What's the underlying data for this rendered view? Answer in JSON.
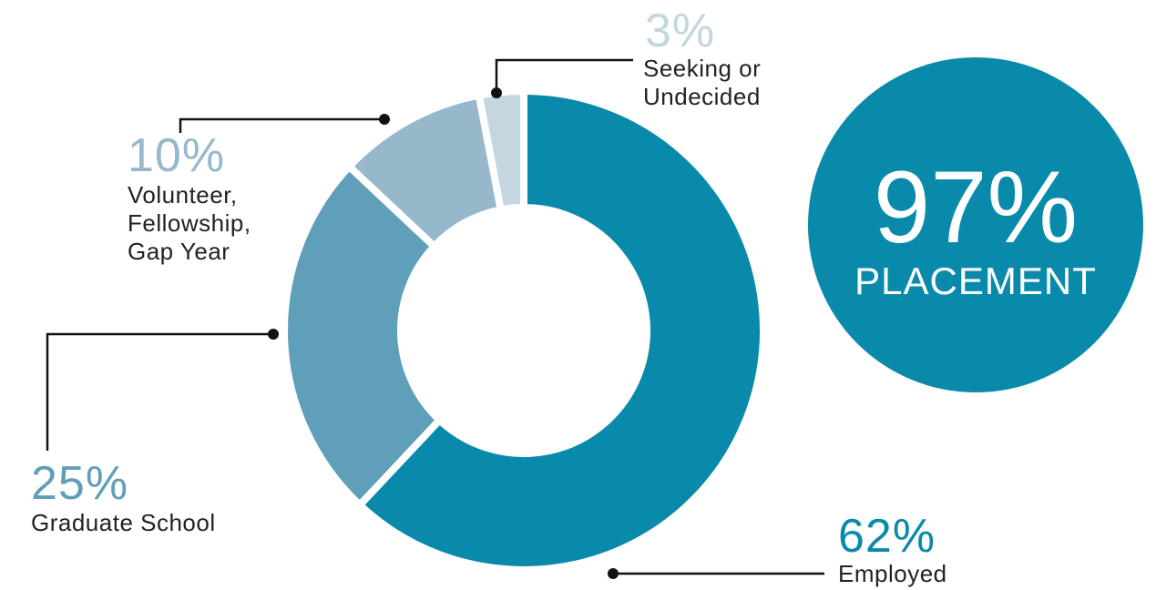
{
  "chart_data": {
    "type": "donut",
    "categories": [
      "Employed",
      "Graduate School",
      "Volunteer,\nFellowship,\nGap Year",
      "Seeking or\nUndecided"
    ],
    "values": [
      62,
      25,
      10,
      3
    ],
    "value_labels": [
      "62%",
      "25%",
      "10%",
      "3%"
    ],
    "colors": [
      "#0a8aab",
      "#609fba",
      "#97b8cb",
      "#c4d6e0"
    ],
    "annotation": {
      "text": "97%",
      "caption": "PLACEMENT",
      "color": "#0a8aab"
    }
  }
}
